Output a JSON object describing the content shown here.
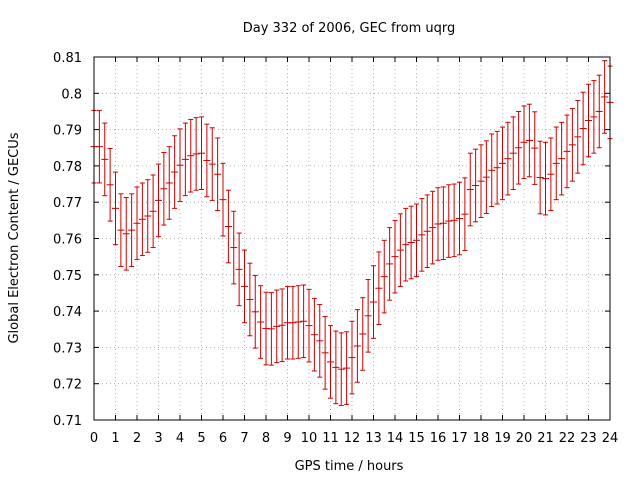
{
  "chart_data": {
    "type": "scatter",
    "title": "Day 332 of 2006, GEC from uqrg",
    "xlabel": "GPS time / hours",
    "ylabel": "Global Electron Content / GECUs",
    "xlim": [
      0,
      24
    ],
    "ylim": [
      0.71,
      0.81
    ],
    "x_ticks": [
      0,
      1,
      2,
      3,
      4,
      5,
      6,
      7,
      8,
      9,
      10,
      11,
      12,
      13,
      14,
      15,
      16,
      17,
      18,
      19,
      20,
      21,
      22,
      23,
      24
    ],
    "y_ticks": [
      0.71,
      0.72,
      0.73,
      0.74,
      0.75,
      0.76,
      0.77,
      0.78,
      0.79,
      0.8,
      0.81
    ],
    "y_tick_labels": [
      "0.71",
      "0.72",
      "0.73",
      "0.74",
      "0.75",
      "0.76",
      "0.77",
      "0.78",
      "0.79",
      "0.8",
      "0.81"
    ],
    "grid": true,
    "error_bar_half_width": 0.01,
    "color": "#cc0000",
    "series": [
      {
        "x": [
          0.0,
          0.25,
          0.5,
          0.75,
          1.0,
          1.25,
          1.5,
          1.75,
          2.0,
          2.25,
          2.5,
          2.75,
          3.0,
          3.25,
          3.5,
          3.75,
          4.0,
          4.25,
          4.5,
          4.75,
          5.0,
          5.25,
          5.5,
          5.75,
          6.0,
          6.25,
          6.5,
          6.75,
          7.0,
          7.25,
          7.5,
          7.75,
          8.0,
          8.25,
          8.5,
          8.75,
          9.0,
          9.25,
          9.5,
          9.75,
          10.0,
          10.25,
          10.5,
          10.75,
          11.0,
          11.25,
          11.5,
          11.75,
          12.0,
          12.25,
          12.5,
          12.75,
          13.0,
          13.25,
          13.5,
          13.75,
          14.0,
          14.25,
          14.5,
          14.75,
          15.0,
          15.25,
          15.5,
          15.75,
          16.0,
          16.25,
          16.5,
          16.75,
          17.0,
          17.25,
          17.5,
          17.75,
          18.0,
          18.25,
          18.5,
          18.75,
          19.0,
          19.25,
          19.5,
          19.75,
          20.0,
          20.25,
          20.5,
          20.75,
          21.0,
          21.25,
          21.5,
          21.75,
          22.0,
          22.25,
          22.5,
          22.75,
          23.0,
          23.25,
          23.5,
          23.75,
          24.0
        ],
        "y": [
          0.7853,
          0.7853,
          0.7818,
          0.7748,
          0.7683,
          0.7623,
          0.7613,
          0.7623,
          0.7642,
          0.7653,
          0.7662,
          0.7675,
          0.7705,
          0.7737,
          0.7753,
          0.7783,
          0.7802,
          0.7818,
          0.7828,
          0.7833,
          0.7835,
          0.7815,
          0.7805,
          0.7777,
          0.7707,
          0.7633,
          0.7575,
          0.7515,
          0.7468,
          0.7432,
          0.7398,
          0.737,
          0.7352,
          0.7351,
          0.7358,
          0.7361,
          0.7368,
          0.7368,
          0.737,
          0.7372,
          0.736,
          0.7335,
          0.7318,
          0.7285,
          0.726,
          0.7245,
          0.724,
          0.7243,
          0.7272,
          0.7304,
          0.7337,
          0.7387,
          0.7425,
          0.7463,
          0.7495,
          0.753,
          0.755,
          0.7568,
          0.7583,
          0.7589,
          0.7595,
          0.761,
          0.762,
          0.763,
          0.764,
          0.7642,
          0.7648,
          0.765,
          0.7655,
          0.7667,
          0.7735,
          0.7746,
          0.7758,
          0.7769,
          0.7788,
          0.7795,
          0.7807,
          0.782,
          0.7835,
          0.785,
          0.7865,
          0.787,
          0.7849,
          0.7768,
          0.7765,
          0.7777,
          0.7807,
          0.782,
          0.784,
          0.7858,
          0.788,
          0.7903,
          0.7925,
          0.7935,
          0.795,
          0.799,
          0.7975
        ],
        "yerr": 0.01
      }
    ]
  }
}
